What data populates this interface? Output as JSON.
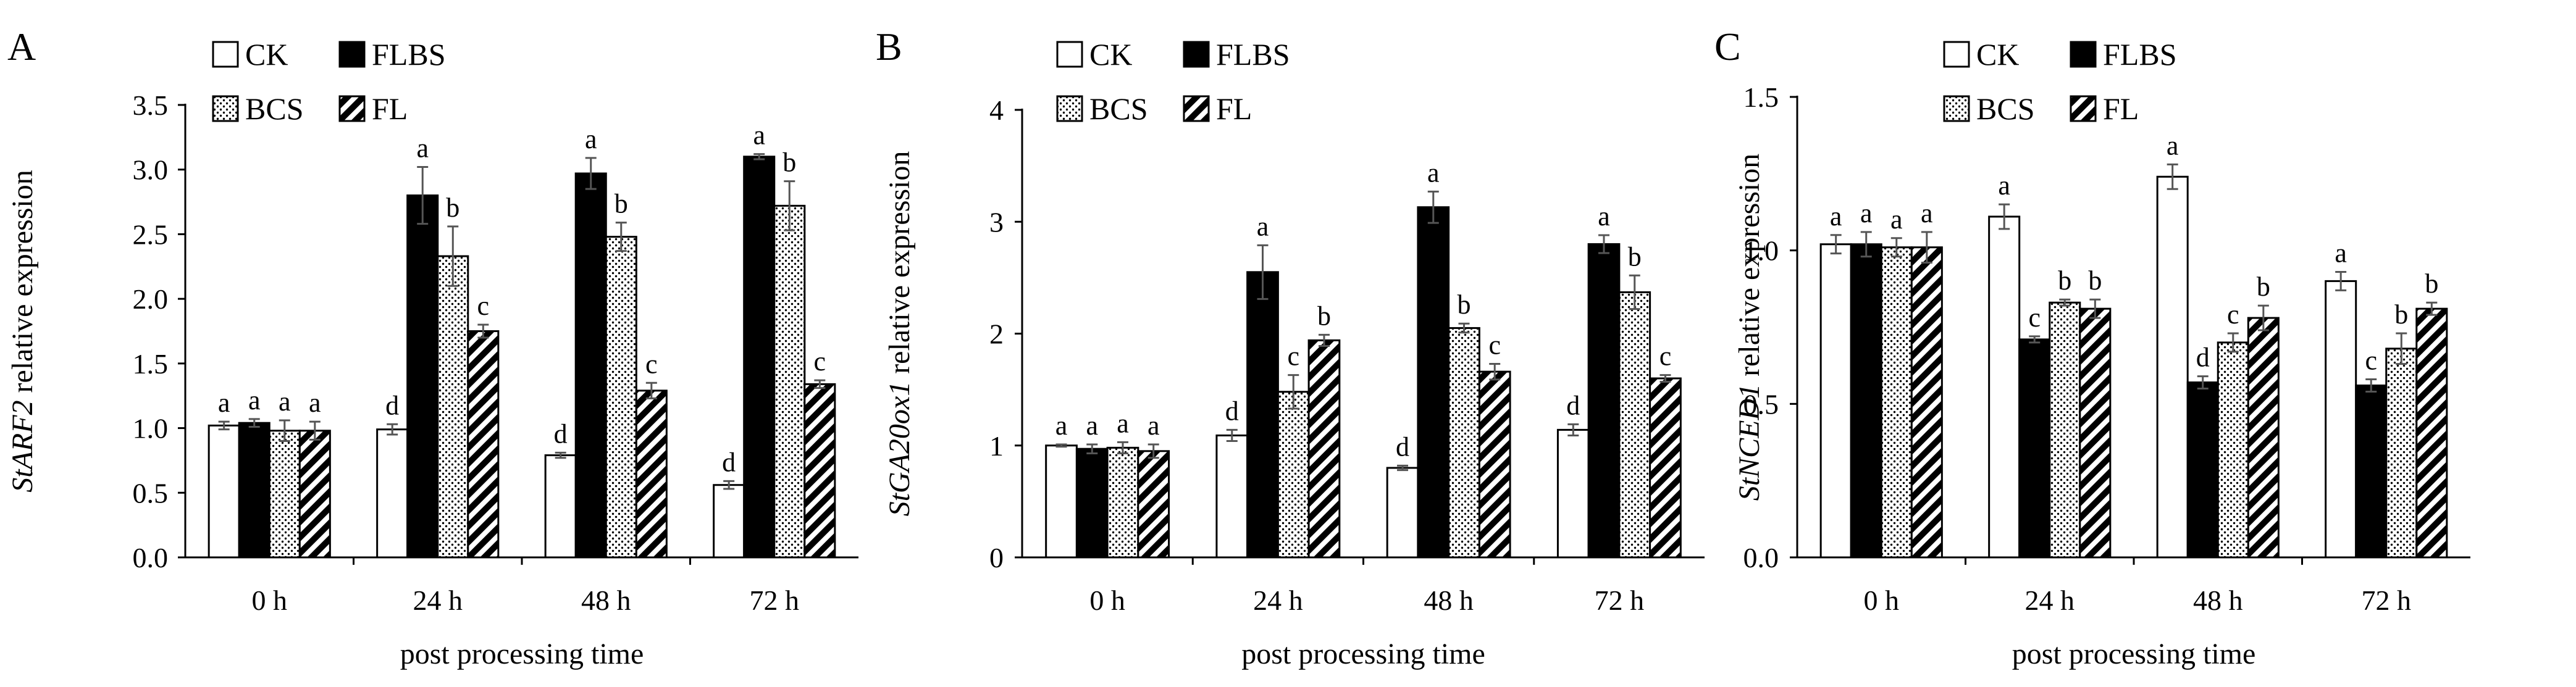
{
  "chart_data": [
    {
      "panel": "A",
      "type": "bar",
      "categories": [
        "0 h",
        "24 h",
        "48 h",
        "72 h"
      ],
      "series": [
        {
          "name": "CK",
          "values": [
            1.02,
            0.99,
            0.79,
            0.56
          ],
          "errors": [
            0.03,
            0.04,
            0.02,
            0.03
          ],
          "letters": [
            "a",
            "d",
            "d",
            "d"
          ]
        },
        {
          "name": "FLBS",
          "values": [
            1.04,
            2.8,
            2.97,
            3.1
          ],
          "errors": [
            0.03,
            0.22,
            0.12,
            0.02
          ],
          "letters": [
            "a",
            "a",
            "a",
            "a"
          ]
        },
        {
          "name": "BCS",
          "values": [
            0.98,
            2.33,
            2.48,
            2.72
          ],
          "errors": [
            0.08,
            0.23,
            0.11,
            0.19
          ],
          "letters": [
            "a",
            "b",
            "b",
            "b"
          ]
        },
        {
          "name": "FL",
          "values": [
            0.98,
            1.75,
            1.29,
            1.34
          ],
          "errors": [
            0.07,
            0.05,
            0.06,
            0.03
          ],
          "letters": [
            "a",
            "c",
            "c",
            "c"
          ]
        }
      ],
      "ylabel_italic": "StARF2",
      "ylabel_rest": " relative expression",
      "xlabel": "post processing time",
      "ylim": [
        0,
        3.5
      ],
      "yticks": [
        "0.0",
        "0.5",
        "1.0",
        "1.5",
        "2.0",
        "2.5",
        "3.0",
        "3.5"
      ],
      "legend_placement": "top-left"
    },
    {
      "panel": "B",
      "type": "bar",
      "categories": [
        "0 h",
        "24 h",
        "48 h",
        "72 h"
      ],
      "series": [
        {
          "name": "CK",
          "values": [
            1.0,
            1.09,
            0.8,
            1.14
          ],
          "errors": [
            0.01,
            0.05,
            0.02,
            0.05
          ],
          "letters": [
            "a",
            "d",
            "d",
            "d"
          ]
        },
        {
          "name": "FLBS",
          "values": [
            0.97,
            2.55,
            3.13,
            2.8
          ],
          "errors": [
            0.04,
            0.24,
            0.14,
            0.08
          ],
          "letters": [
            "a",
            "a",
            "a",
            "a"
          ]
        },
        {
          "name": "BCS",
          "values": [
            0.98,
            1.48,
            2.05,
            2.37
          ],
          "errors": [
            0.05,
            0.15,
            0.04,
            0.15
          ],
          "letters": [
            "a",
            "c",
            "b",
            "b"
          ]
        },
        {
          "name": "FL",
          "values": [
            0.95,
            1.94,
            1.66,
            1.6
          ],
          "errors": [
            0.06,
            0.05,
            0.07,
            0.03
          ],
          "letters": [
            "a",
            "b",
            "c",
            "c"
          ]
        }
      ],
      "ylabel_italic": "StGA20ox1",
      "ylabel_rest": " relative expression",
      "xlabel": "post processing time",
      "ylim": [
        0,
        4
      ],
      "yticks": [
        "0",
        "1",
        "2",
        "3",
        "4"
      ],
      "legend_placement": "top-left"
    },
    {
      "panel": "C",
      "type": "bar",
      "categories": [
        "0 h",
        "24 h",
        "48 h",
        "72 h"
      ],
      "series": [
        {
          "name": "CK",
          "values": [
            1.02,
            1.11,
            1.24,
            0.9
          ],
          "errors": [
            0.03,
            0.04,
            0.04,
            0.03
          ],
          "letters": [
            "a",
            "a",
            "a",
            "a"
          ]
        },
        {
          "name": "FLBS",
          "values": [
            1.02,
            0.71,
            0.57,
            0.56
          ],
          "errors": [
            0.04,
            0.01,
            0.02,
            0.02
          ],
          "letters": [
            "a",
            "c",
            "d",
            "c"
          ]
        },
        {
          "name": "BCS",
          "values": [
            1.01,
            0.83,
            0.7,
            0.68
          ],
          "errors": [
            0.03,
            0.01,
            0.03,
            0.05
          ],
          "letters": [
            "a",
            "b",
            "c",
            "b"
          ]
        },
        {
          "name": "FL",
          "values": [
            1.01,
            0.81,
            0.78,
            0.81
          ],
          "errors": [
            0.05,
            0.03,
            0.04,
            0.02
          ],
          "letters": [
            "a",
            "b",
            "b",
            "b"
          ]
        }
      ],
      "ylabel_italic": "StNCED1",
      "ylabel_rest": " relative expression",
      "xlabel": "post processing time",
      "ylim": [
        0,
        1.5
      ],
      "yticks": [
        "0.0",
        "0.5",
        "1.0",
        "1.5"
      ],
      "legend_placement": "top-left"
    }
  ],
  "colors": {
    "CK": "#ffffff",
    "FLBS": "#000000",
    "axis": "#000000",
    "error_bar": "#555555"
  }
}
